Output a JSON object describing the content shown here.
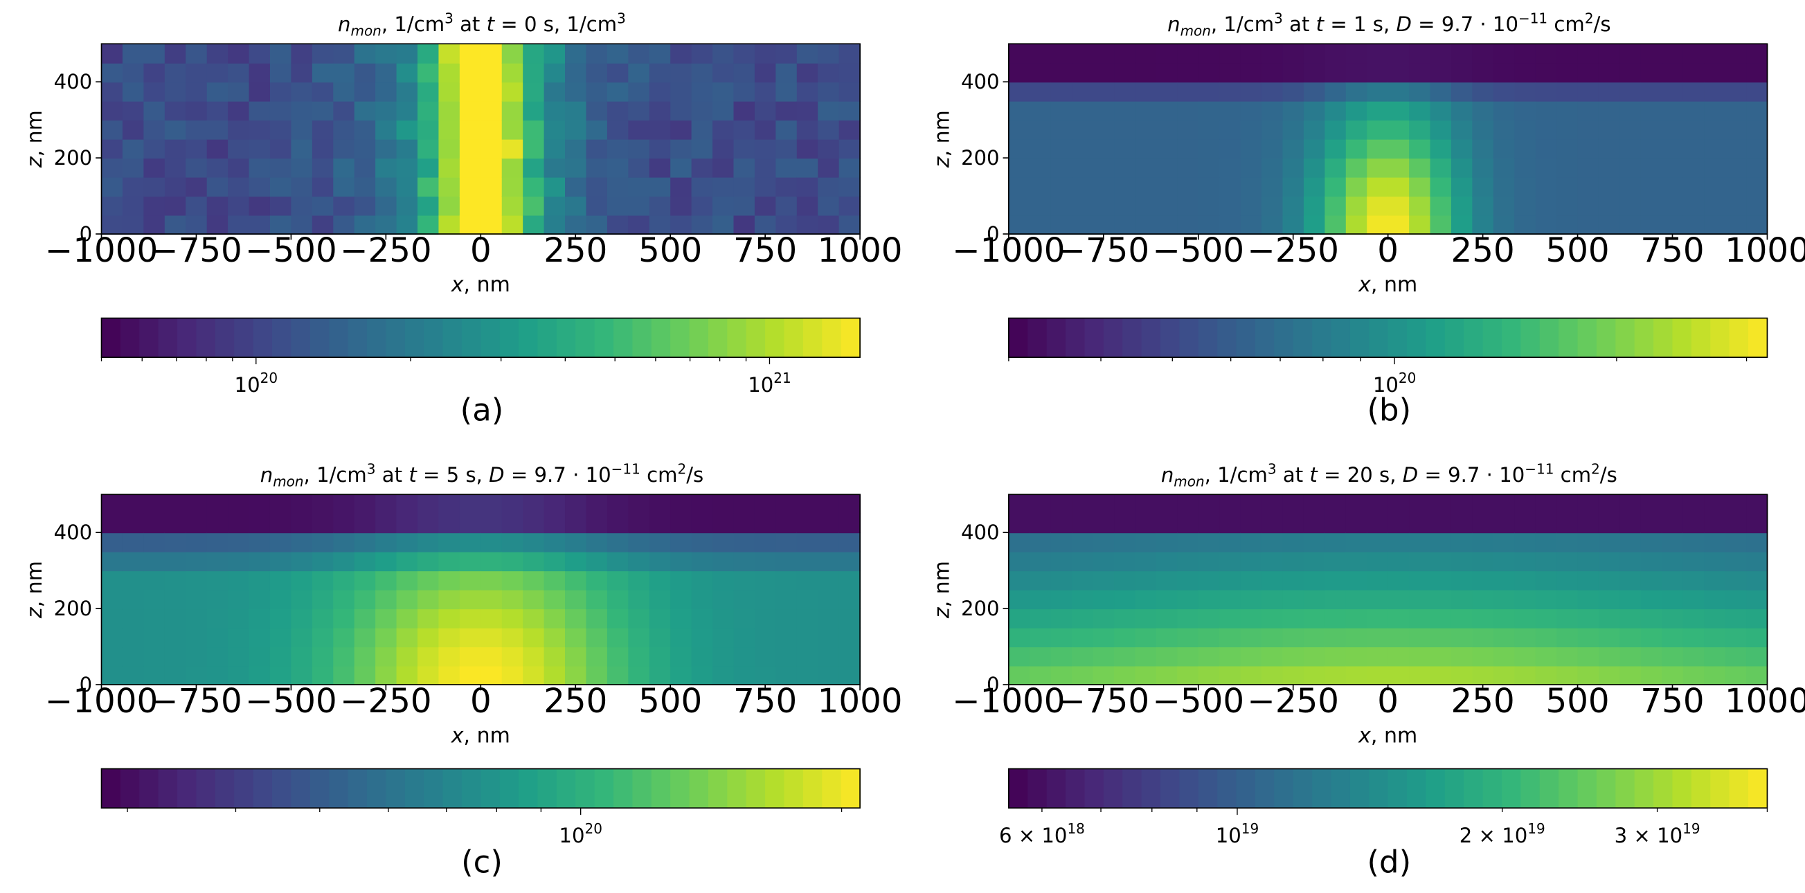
{
  "chart_data": [
    {
      "type": "heatmap",
      "panel": "(a)",
      "title_prefix": "n",
      "title_sub": "mon",
      "title_rest": ", 1/cm",
      "title_sup": "3",
      "title_at": " at ",
      "title_var": "t",
      "title_tail": " = 0 s, 1/cm",
      "title_tail_sup": "3",
      "title_D": "",
      "xlabel_var": "x",
      "xlabel_unit": ", nm",
      "ylabel_var": "z",
      "ylabel_unit": ", nm",
      "xlim": [
        -1000,
        1000
      ],
      "ylim": [
        0,
        500
      ],
      "xticks": [
        "−1000",
        "−750",
        "−500",
        "−250",
        "0",
        "250",
        "500",
        "750",
        "1000"
      ],
      "xtick_values": [
        -1000,
        -750,
        -500,
        -250,
        0,
        250,
        500,
        750,
        1000
      ],
      "yticks": [
        "0",
        "200",
        "400"
      ],
      "ytick_values": [
        0,
        200,
        400
      ],
      "profile": "initial_band",
      "colorbar": {
        "scale": "log",
        "range": [
          5e+19,
          1.5e+21
        ],
        "labels": [
          {
            "value": 1e+20,
            "base": "10",
            "exp": "20",
            "mant": ""
          },
          {
            "value": 1e+21,
            "base": "10",
            "exp": "21",
            "mant": ""
          }
        ]
      }
    },
    {
      "type": "heatmap",
      "panel": "(b)",
      "title_prefix": "n",
      "title_sub": "mon",
      "title_rest": ", 1/cm",
      "title_sup": "3",
      "title_at": " at ",
      "title_var": "t",
      "title_tail": " = 1 s, ",
      "title_tail_sup": "",
      "title_D": "D",
      "title_D_val": " = 9.7 · 10",
      "title_D_exp": "−11",
      "title_D_unit": " cm",
      "title_D_unit_sup": "2",
      "title_D_unit_tail": "/s",
      "xlabel_var": "x",
      "xlabel_unit": ", nm",
      "ylabel_var": "z",
      "ylabel_unit": ", nm",
      "xlim": [
        -1000,
        1000
      ],
      "ylim": [
        0,
        500
      ],
      "xticks": [
        "−1000",
        "−750",
        "−500",
        "−250",
        "0",
        "250",
        "500",
        "750",
        "1000"
      ],
      "xtick_values": [
        -1000,
        -750,
        -500,
        -250,
        0,
        250,
        500,
        750,
        1000
      ],
      "yticks": [
        "0",
        "200",
        "400"
      ],
      "ytick_values": [
        0,
        200,
        400
      ],
      "profile": "dome_narrow",
      "colorbar": {
        "scale": "log",
        "range": [
          3e+19,
          3.2e+20
        ],
        "labels": [
          {
            "value": 1e+20,
            "base": "10",
            "exp": "20",
            "mant": ""
          }
        ]
      }
    },
    {
      "type": "heatmap",
      "panel": "(c)",
      "title_prefix": "n",
      "title_sub": "mon",
      "title_rest": ", 1/cm",
      "title_sup": "3",
      "title_at": " at ",
      "title_var": "t",
      "title_tail": " = 5 s, ",
      "title_tail_sup": "",
      "title_D": "D",
      "title_D_val": " = 9.7 · 10",
      "title_D_exp": "−11",
      "title_D_unit": " cm",
      "title_D_unit_sup": "2",
      "title_D_unit_tail": "/s",
      "xlabel_var": "x",
      "xlabel_unit": ", nm",
      "ylabel_var": "z",
      "ylabel_unit": ", nm",
      "xlim": [
        -1000,
        1000
      ],
      "ylim": [
        0,
        500
      ],
      "xticks": [
        "−1000",
        "−750",
        "−500",
        "−250",
        "0",
        "250",
        "500",
        "750",
        "1000"
      ],
      "xtick_values": [
        -1000,
        -750,
        -500,
        -250,
        0,
        250,
        500,
        750,
        1000
      ],
      "yticks": [
        "0",
        "200",
        "400"
      ],
      "ytick_values": [
        0,
        200,
        400
      ],
      "profile": "dome_wide",
      "colorbar": {
        "scale": "log",
        "range": [
          2.8e+19,
          2.1e+20
        ],
        "labels": [
          {
            "value": 1e+20,
            "base": "10",
            "exp": "20",
            "mant": ""
          }
        ]
      }
    },
    {
      "type": "heatmap",
      "panel": "(d)",
      "title_prefix": "n",
      "title_sub": "mon",
      "title_rest": ", 1/cm",
      "title_sup": "3",
      "title_at": " at ",
      "title_var": "t",
      "title_tail": " = 20 s, ",
      "title_tail_sup": "",
      "title_D": "D",
      "title_D_val": " = 9.7 · 10",
      "title_D_exp": "−11",
      "title_D_unit": " cm",
      "title_D_unit_sup": "2",
      "title_D_unit_tail": "/s",
      "xlabel_var": "x",
      "xlabel_unit": ", nm",
      "ylabel_var": "z",
      "ylabel_unit": ", nm",
      "xlim": [
        -1000,
        1000
      ],
      "ylim": [
        0,
        500
      ],
      "xticks": [
        "−1000",
        "−750",
        "−500",
        "−250",
        "0",
        "250",
        "500",
        "750",
        "1000"
      ],
      "xtick_values": [
        -1000,
        -750,
        -500,
        -250,
        0,
        250,
        500,
        750,
        1000
      ],
      "yticks": [
        "0",
        "200",
        "400"
      ],
      "ytick_values": [
        0,
        200,
        400
      ],
      "profile": "flat_wide",
      "colorbar": {
        "scale": "log",
        "range": [
          5.5e+18,
          4e+19
        ],
        "labels": [
          {
            "value": 6e+18,
            "base": "10",
            "exp": "18",
            "mant": "6 × "
          },
          {
            "value": 1e+19,
            "base": "10",
            "exp": "19",
            "mant": ""
          },
          {
            "value": 2e+19,
            "base": "10",
            "exp": "19",
            "mant": "2 × "
          },
          {
            "value": 3e+19,
            "base": "10",
            "exp": "19",
            "mant": "3 × "
          }
        ]
      }
    }
  ],
  "colors": {
    "viridis": [
      "#440154",
      "#482878",
      "#3e4a89",
      "#31688e",
      "#26828e",
      "#1f9e89",
      "#35b779",
      "#6ece58",
      "#b5de2b",
      "#fde725"
    ]
  }
}
